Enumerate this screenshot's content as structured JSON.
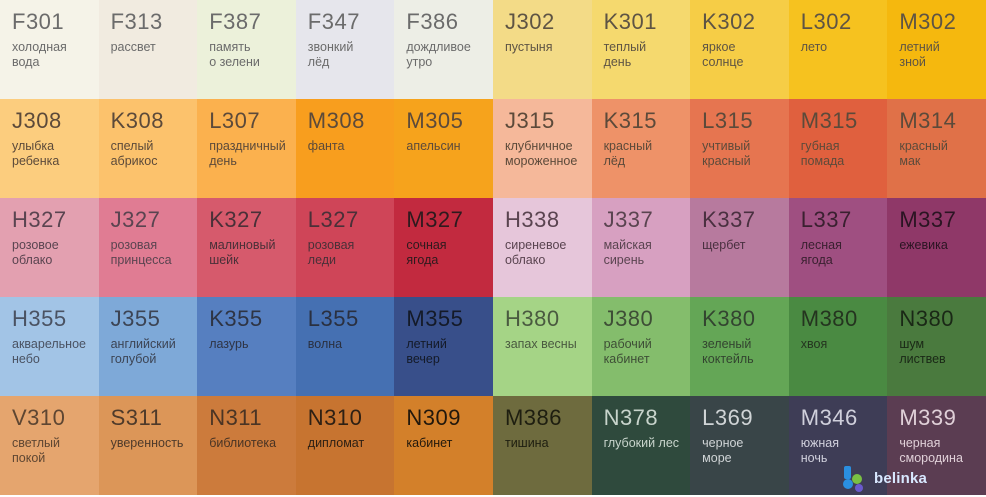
{
  "swatches": [
    {
      "code": "F301",
      "name": "холодная\nвода",
      "bg": "#f5f3e8",
      "fg": "#6b6b6b"
    },
    {
      "code": "F313",
      "name": "рассвет",
      "bg": "#f1ebe0",
      "fg": "#6b6b6b"
    },
    {
      "code": "F387",
      "name": "память\nо зелени",
      "bg": "#ecf1da",
      "fg": "#6b6b6b"
    },
    {
      "code": "F347",
      "name": "звонкий\nлёд",
      "bg": "#e6e6ec",
      "fg": "#6b6b6b"
    },
    {
      "code": "F386",
      "name": "дождливое\nутро",
      "bg": "#edeee6",
      "fg": "#6b6b6b"
    },
    {
      "code": "J302",
      "name": "пустыня",
      "bg": "#f3db87",
      "fg": "#5e5444"
    },
    {
      "code": "K301",
      "name": "теплый\nдень",
      "bg": "#f5d96e",
      "fg": "#5e5444"
    },
    {
      "code": "K302",
      "name": "яркое\nсолнце",
      "bg": "#f6cd46",
      "fg": "#5e5444"
    },
    {
      "code": "L302",
      "name": "лето",
      "bg": "#f6c21f",
      "fg": "#5e5444"
    },
    {
      "code": "M302",
      "name": "летний\nзной",
      "bg": "#f5b80e",
      "fg": "#5e5444"
    },
    {
      "code": "J308",
      "name": "улыбка\nребенка",
      "bg": "#fccd7e",
      "fg": "#5c4a3a"
    },
    {
      "code": "K308",
      "name": "спелый\nабрикос",
      "bg": "#fcc26c",
      "fg": "#5c4a3a"
    },
    {
      "code": "L307",
      "name": "праздничный\nдень",
      "bg": "#fbb14e",
      "fg": "#5c4a3a"
    },
    {
      "code": "M308",
      "name": "фанта",
      "bg": "#f89e1e",
      "fg": "#5c4a3a"
    },
    {
      "code": "M305",
      "name": "апельсин",
      "bg": "#f6a31c",
      "fg": "#5c4a3a"
    },
    {
      "code": "J315",
      "name": "клубничное\nмороженное",
      "bg": "#f5b89a",
      "fg": "#5c4a3a"
    },
    {
      "code": "K315",
      "name": "красный\nлёд",
      "bg": "#ee9268",
      "fg": "#5c4a3a"
    },
    {
      "code": "L315",
      "name": "учтивый\nкрасный",
      "bg": "#e67550",
      "fg": "#5c4a3a"
    },
    {
      "code": "M315",
      "name": "губная\nпомада",
      "bg": "#e0603e",
      "fg": "#5c4a3a"
    },
    {
      "code": "M314",
      "name": "красный\nмак",
      "bg": "#e07148",
      "fg": "#5c4a3a"
    },
    {
      "code": "H327",
      "name": "розовое\nоблако",
      "bg": "#e3a0b0",
      "fg": "#5a4450"
    },
    {
      "code": "J327",
      "name": "розовая\nпринцесса",
      "bg": "#e07c93",
      "fg": "#5a4450"
    },
    {
      "code": "K327",
      "name": "малиновый\nшейк",
      "bg": "#d65a6c",
      "fg": "#4a3038"
    },
    {
      "code": "L327",
      "name": "розовая\nледи",
      "bg": "#cf4558",
      "fg": "#4a3038"
    },
    {
      "code": "M327",
      "name": "сочная\nягода",
      "bg": "#c22a3f",
      "fg": "#2e1a1e"
    },
    {
      "code": "H338",
      "name": "сиреневое\nоблако",
      "bg": "#e6c6da",
      "fg": "#5a4450"
    },
    {
      "code": "J337",
      "name": "майская\nсирень",
      "bg": "#d7a0c1",
      "fg": "#5a4450"
    },
    {
      "code": "K337",
      "name": "щербет",
      "bg": "#b77a9e",
      "fg": "#4a3040"
    },
    {
      "code": "L337",
      "name": "лесная\nягода",
      "bg": "#9f4f81",
      "fg": "#3a2030"
    },
    {
      "code": "M337",
      "name": "ежевика",
      "bg": "#8f3868",
      "fg": "#2a1422"
    },
    {
      "code": "H355",
      "name": "акварельное\nнебо",
      "bg": "#a2c4e6",
      "fg": "#4a5262"
    },
    {
      "code": "J355",
      "name": "английский\nголубой",
      "bg": "#7ea9d8",
      "fg": "#3c4454"
    },
    {
      "code": "K355",
      "name": "лазурь",
      "bg": "#567fc0",
      "fg": "#2e3444"
    },
    {
      "code": "L355",
      "name": "волна",
      "bg": "#4570b2",
      "fg": "#2a3040"
    },
    {
      "code": "M355",
      "name": "летний\nвечер",
      "bg": "#384f8a",
      "fg": "#141a28"
    },
    {
      "code": "H380",
      "name": "запах весны",
      "bg": "#a5d486",
      "fg": "#4a5a40"
    },
    {
      "code": "J380",
      "name": "рабочий\nкабинет",
      "bg": "#84bd6c",
      "fg": "#3e4e36"
    },
    {
      "code": "K380",
      "name": "зеленый\nкоктейль",
      "bg": "#64a656",
      "fg": "#334430"
    },
    {
      "code": "M380",
      "name": "хвоя",
      "bg": "#4a8a42",
      "fg": "#24341f"
    },
    {
      "code": "N380",
      "name": "шум\nлиствев",
      "bg": "#4a7a3e",
      "fg": "#1a2816"
    },
    {
      "code": "V310",
      "name": "светлый\nпокой",
      "bg": "#e5a56e",
      "fg": "#5e4632"
    },
    {
      "code": "S311",
      "name": "уверенность",
      "bg": "#dc9658",
      "fg": "#4e3a2a"
    },
    {
      "code": "N311",
      "name": "библиотека",
      "bg": "#cc7b3c",
      "fg": "#4a3424"
    },
    {
      "code": "N310",
      "name": "дипломат",
      "bg": "#c77430",
      "fg": "#2e2014"
    },
    {
      "code": "N309",
      "name": "кабинет",
      "bg": "#d3802a",
      "fg": "#22180c"
    },
    {
      "code": "M386",
      "name": "тишина",
      "bg": "#6e6b3e",
      "fg": "#1e1e10"
    },
    {
      "code": "N378",
      "name": "глубокий лес",
      "bg": "#2f4a3d",
      "fg": "#c8d4cc"
    },
    {
      "code": "L369",
      "name": "черное\nморе",
      "bg": "#394548",
      "fg": "#d0d4d6"
    },
    {
      "code": "M346",
      "name": "южная\nночь",
      "bg": "#3e3d56",
      "fg": "#d0d0dc"
    },
    {
      "code": "M339",
      "name": "черная\nсмородина",
      "bg": "#5b3d52",
      "fg": "#e0d0d8"
    }
  ],
  "logo": {
    "text": "belinka",
    "colors": [
      "#2a8fe0",
      "#7ac043",
      "#6a5acd"
    ]
  }
}
